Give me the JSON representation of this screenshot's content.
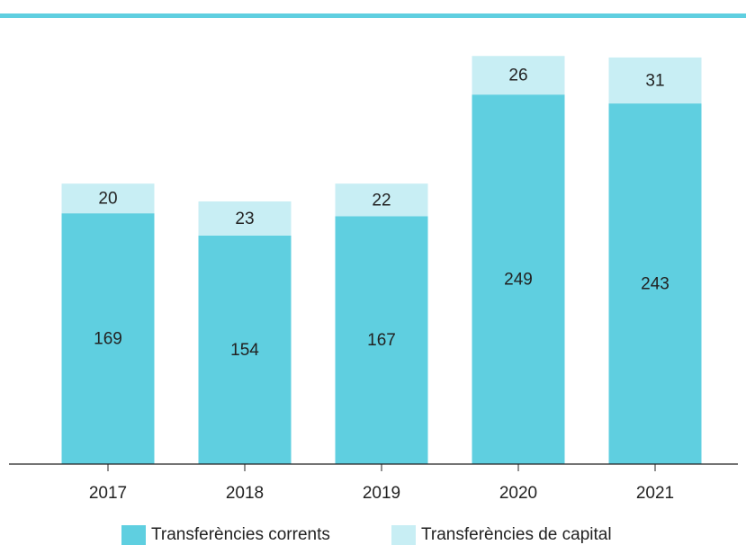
{
  "chart_data": {
    "type": "bar",
    "stacked": true,
    "categories": [
      "2017",
      "2018",
      "2019",
      "2020",
      "2021"
    ],
    "series": [
      {
        "name": "Transferències corrents",
        "color": "#5fcfe0",
        "values": [
          169,
          154,
          167,
          249,
          243
        ]
      },
      {
        "name": "Transferències de capital",
        "color": "#c8eef4",
        "values": [
          20,
          23,
          22,
          26,
          31
        ]
      }
    ],
    "ylim": [
      0,
      300
    ]
  }
}
